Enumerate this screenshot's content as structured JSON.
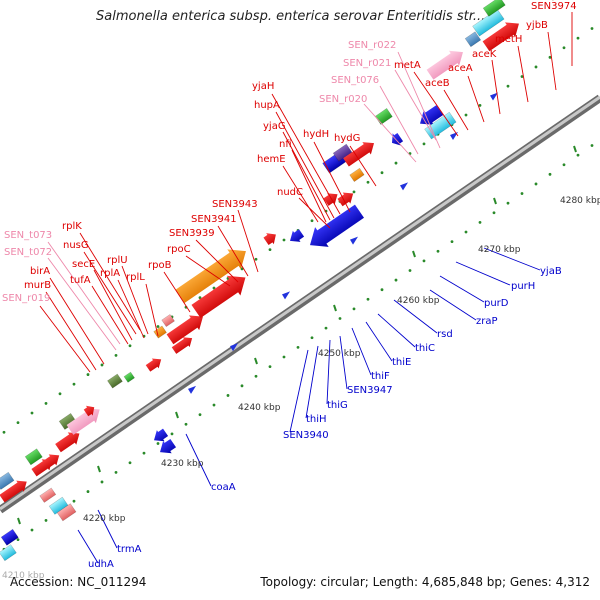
{
  "title": "Salmonella enterica subsp. enterica serovar Enteritidis str....",
  "footer": {
    "accession": "Accession: NC_011294",
    "topology": "Topology: circular; Length: 4,685,848 bp; Genes: 4,312"
  },
  "colors": {
    "forward_label": "#dd0000",
    "rna_label": "#ee88aa",
    "reverse_label": "#0000cc",
    "backbone": "#999999",
    "tick": "#2a8a2a"
  },
  "ticks": [
    {
      "label": "4210 kbp"
    },
    {
      "label": "4220 kbp"
    },
    {
      "label": "4230 kbp"
    },
    {
      "label": "4240 kbp"
    },
    {
      "label": "4250 kbp"
    },
    {
      "label": "4260 kbp"
    },
    {
      "label": "4270 kbp"
    },
    {
      "label": "4280 kbp"
    }
  ],
  "forward_genes": [
    "SEN3974",
    "yjbB",
    "metH",
    "aceK",
    "aceA",
    "aceB",
    "metA",
    "SEN_r021",
    "SEN_r022",
    "SEN_t076",
    "SEN_r020",
    "yjaH",
    "hupA",
    "yjaG",
    "nfi",
    "hydH",
    "hydG",
    "hemE",
    "nudC",
    "SEN3943",
    "SEN3941",
    "SEN3939",
    "rpoC",
    "rpoB",
    "rplK",
    "SEN_t073",
    "nusG",
    "SEN_t072",
    "secE",
    "rplU",
    "tufA",
    "rplA",
    "rplL",
    "birA",
    "murB",
    "SEN_r019"
  ],
  "reverse_genes": [
    "yjaB",
    "purH",
    "purD",
    "zraP",
    "rsd",
    "thiC",
    "thiE",
    "thiF",
    "SEN3947",
    "thiG",
    "thiH",
    "SEN3940",
    "coaA",
    "trmA",
    "udhA"
  ]
}
